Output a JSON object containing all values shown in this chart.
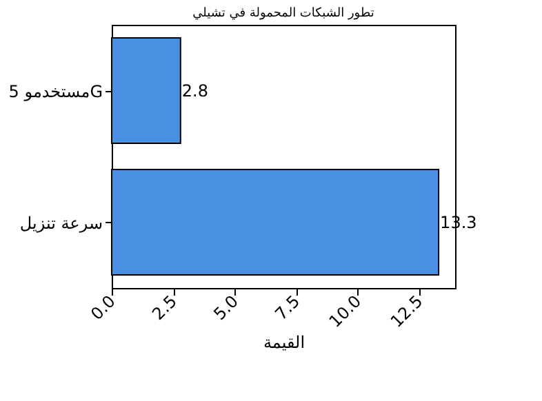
{
  "chart_data": {
    "type": "bar",
    "orientation": "horizontal",
    "title": "تطور الشبكات المحمولة في تشيلي",
    "xlabel": "القيمة",
    "categories": [
      "مستخدمو 5G",
      "سرعة تنزيل"
    ],
    "values": [
      2.8,
      13.3
    ],
    "color": "#4a90e2",
    "xlim": [
      0,
      13.97
    ],
    "xticks": [
      {
        "value": 0,
        "label": "0.0"
      },
      2.5,
      {
        "value": 5,
        "label": "5.0"
      },
      7.5,
      {
        "value": 10,
        "label": "10.0"
      },
      12.5
    ],
    "data_labels": true,
    "grid": false
  }
}
